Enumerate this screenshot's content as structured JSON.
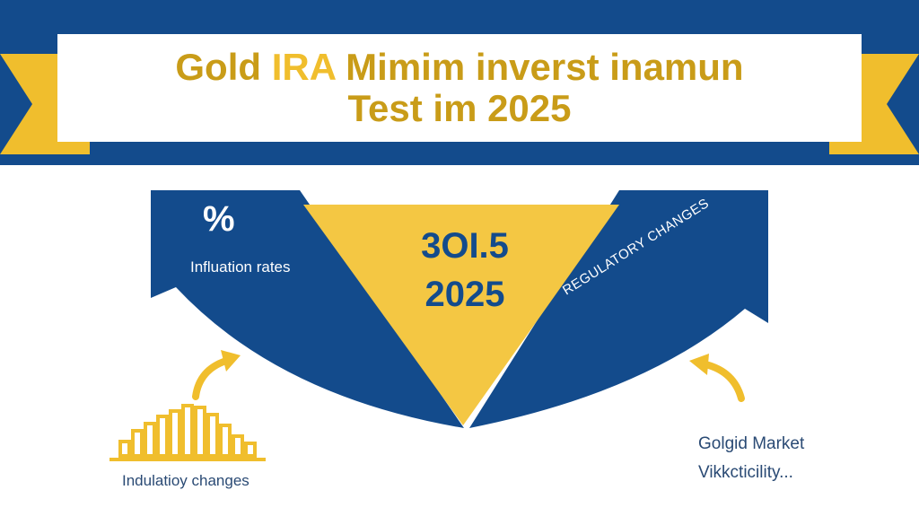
{
  "header": {
    "title_line_1_part_1": "Gold ",
    "title_line_1_accent": "IRA",
    "title_line_1_part_2": " Mimim inverst inamun",
    "title_line_2": "Test im 2025"
  },
  "diagram": {
    "left_panel": {
      "symbol": "%",
      "label": "Influation rates"
    },
    "center": {
      "value": "3OI.5",
      "year": "2025"
    },
    "right_panel": {
      "label": "REGULATORY CHANGES"
    },
    "bars_caption": "Indulatioy changes",
    "market_caption_line_1": "Golgid Market",
    "market_caption_line_2": "Vikkcticility..."
  },
  "icons": [
    "curved-arrow-icon",
    "bar-chart-icon",
    "curved-arrow-icon"
  ],
  "colors": {
    "navy": "#134b8c",
    "gold": "#f0be2d",
    "dark_gold": "#c99c18",
    "white": "#ffffff"
  }
}
